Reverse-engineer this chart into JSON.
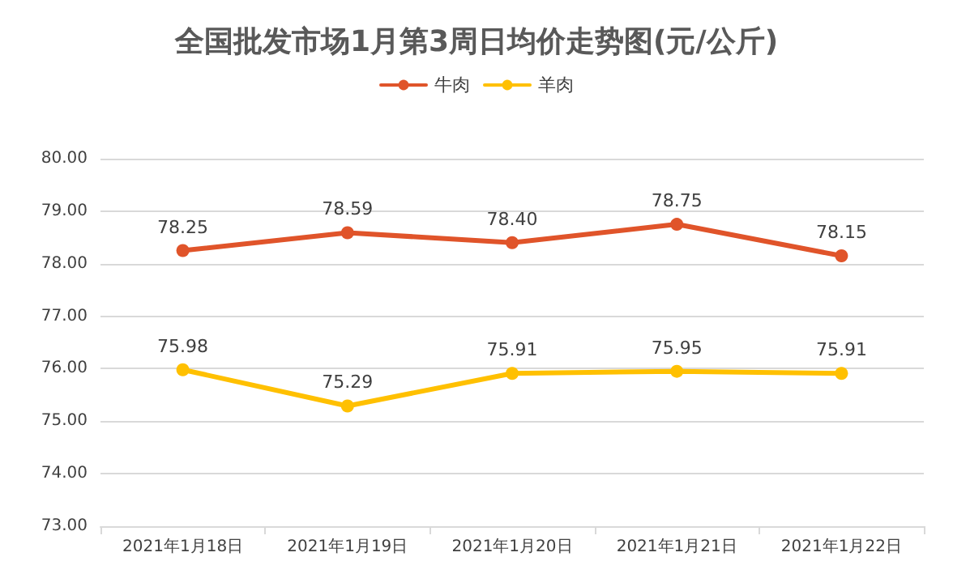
{
  "chart_data": {
    "type": "line",
    "title": "全国批发市场1月第3周日均价走势图(元/公斤)",
    "categories": [
      "2021年1月18日",
      "2021年1月19日",
      "2021年1月20日",
      "2021年1月21日",
      "2021年1月22日"
    ],
    "series": [
      {
        "name": "牛肉",
        "color": "#e0542a",
        "values": [
          78.25,
          78.59,
          78.4,
          78.75,
          78.15
        ],
        "value_labels": [
          "78.25",
          "78.59",
          "78.40",
          "78.75",
          "78.15"
        ]
      },
      {
        "name": "羊肉",
        "color": "#ffc000",
        "values": [
          75.98,
          75.29,
          75.91,
          75.95,
          75.91
        ],
        "value_labels": [
          "75.98",
          "75.29",
          "75.91",
          "75.95",
          "75.91"
        ]
      }
    ],
    "ylim": [
      73,
      80
    ],
    "yticks": [
      {
        "value": 73,
        "label": "73.00"
      },
      {
        "value": 74,
        "label": "74.00"
      },
      {
        "value": 75,
        "label": "75.00"
      },
      {
        "value": 76,
        "label": "76.00"
      },
      {
        "value": 77,
        "label": "77.00"
      },
      {
        "value": 78,
        "label": "78.00"
      },
      {
        "value": 79,
        "label": "79.00"
      },
      {
        "value": 80,
        "label": "80.00"
      }
    ],
    "grid": "y",
    "legend": "top",
    "marker": "circle",
    "line_style": "solid"
  }
}
